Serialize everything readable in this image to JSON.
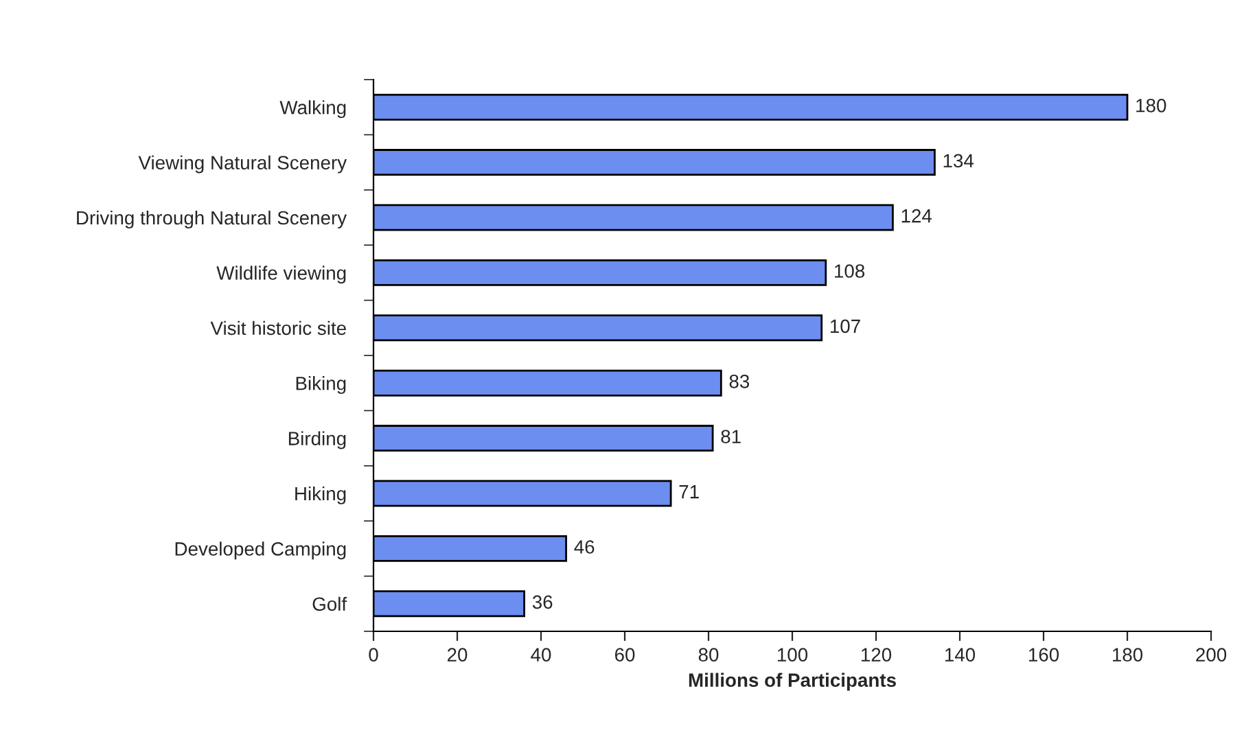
{
  "chart_data": {
    "type": "bar",
    "orientation": "horizontal",
    "xlabel": "Millions of Participants",
    "categories": [
      "Walking",
      "Viewing Natural Scenery",
      "Driving through Natural Scenery",
      "Wildlife viewing",
      "Visit historic site",
      "Biking",
      "Birding",
      "Hiking",
      "Developed Camping",
      "Golf"
    ],
    "values": [
      180,
      134,
      124,
      108,
      107,
      83,
      81,
      71,
      46,
      36
    ],
    "color": "#6b8ef0",
    "xlim": [
      0,
      200
    ],
    "xticks": [
      0,
      20,
      40,
      60,
      80,
      100,
      120,
      140,
      160,
      180,
      200
    ],
    "data_labels": true,
    "grid": false,
    "legend": false
  }
}
